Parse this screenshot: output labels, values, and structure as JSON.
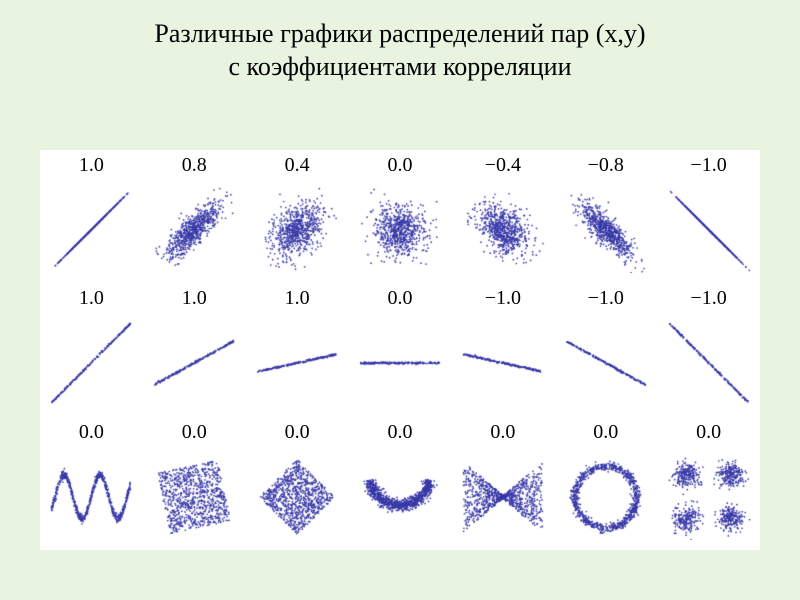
{
  "title": "Различные графики распределений пар (x,y)\nс коэффициентами корреляции",
  "title_color": "#000000",
  "title_fontsize": 26,
  "background_color": "#e8f4e0",
  "panel_background": "#ffffff",
  "point_color": "#3838a8",
  "coef_color": "#000000",
  "coef_fontsize": 20,
  "n_points": 700,
  "cell_canvas": 86,
  "point_radius": 0.85,
  "rows": [
    {
      "cells": [
        {
          "coef": "1.0",
          "type": "corr",
          "r": 1.0
        },
        {
          "coef": "0.8",
          "type": "corr",
          "r": 0.8
        },
        {
          "coef": "0.4",
          "type": "corr",
          "r": 0.4
        },
        {
          "coef": "0.0",
          "type": "corr",
          "r": 0.0
        },
        {
          "coef": "−0.4",
          "type": "corr",
          "r": -0.4
        },
        {
          "coef": "−0.8",
          "type": "corr",
          "r": -0.8
        },
        {
          "coef": "−1.0",
          "type": "corr",
          "r": -1.0
        }
      ]
    },
    {
      "cells": [
        {
          "coef": "1.0",
          "type": "slope",
          "slope": 1.0
        },
        {
          "coef": "1.0",
          "type": "slope",
          "slope": 0.55
        },
        {
          "coef": "1.0",
          "type": "slope",
          "slope": 0.22
        },
        {
          "coef": "0.0",
          "type": "slope",
          "slope": 0.0
        },
        {
          "coef": "−1.0",
          "type": "slope",
          "slope": -0.22
        },
        {
          "coef": "−1.0",
          "type": "slope",
          "slope": -0.55
        },
        {
          "coef": "−1.0",
          "type": "slope",
          "slope": -1.0
        }
      ]
    },
    {
      "cells": [
        {
          "coef": "0.0",
          "type": "wave"
        },
        {
          "coef": "0.0",
          "type": "rot_square"
        },
        {
          "coef": "0.0",
          "type": "diamond"
        },
        {
          "coef": "0.0",
          "type": "crescent"
        },
        {
          "coef": "0.0",
          "type": "bowtie"
        },
        {
          "coef": "0.0",
          "type": "ring"
        },
        {
          "coef": "0.0",
          "type": "four_clusters"
        }
      ]
    }
  ]
}
